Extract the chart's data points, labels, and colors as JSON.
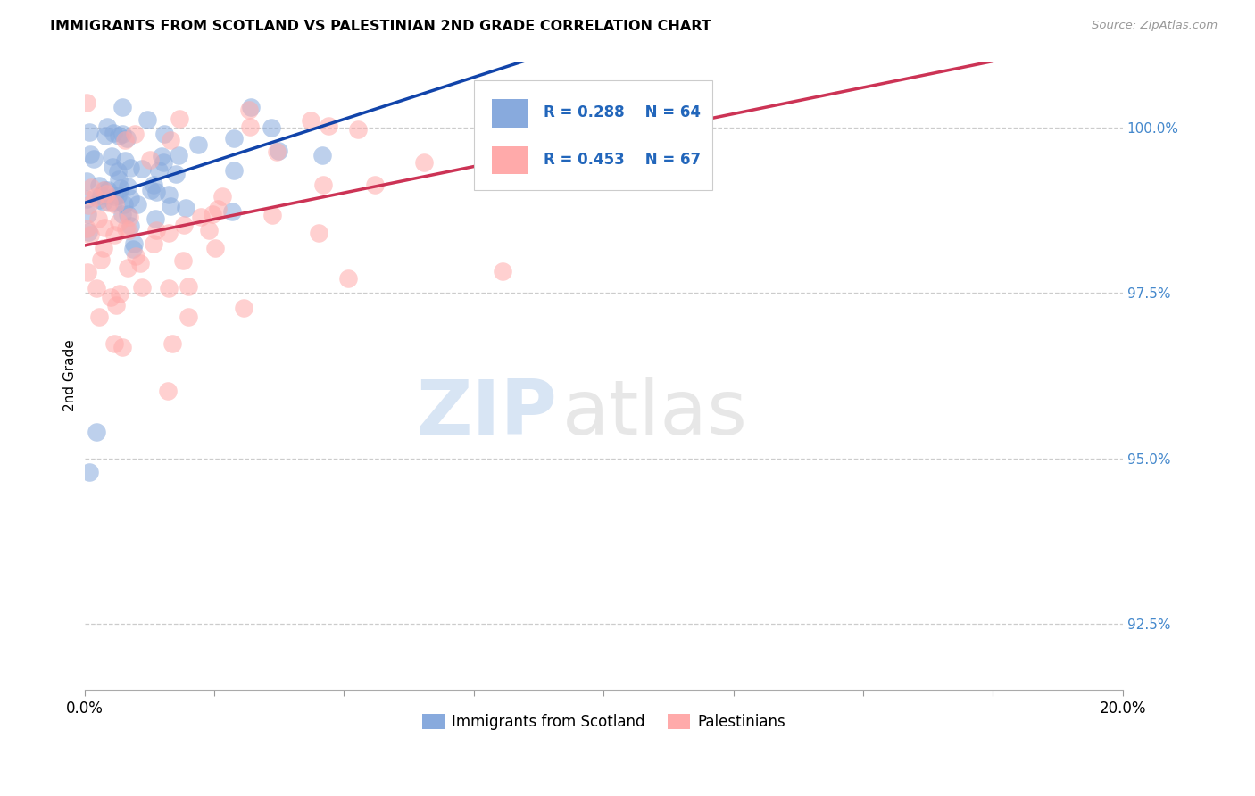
{
  "title": "IMMIGRANTS FROM SCOTLAND VS PALESTINIAN 2ND GRADE CORRELATION CHART",
  "source": "Source: ZipAtlas.com",
  "ylabel": "2nd Grade",
  "xmin": 0.0,
  "xmax": 20.0,
  "ymin": 91.5,
  "ymax": 101.0,
  "yticks": [
    92.5,
    95.0,
    97.5,
    100.0
  ],
  "ytick_labels": [
    "92.5%",
    "95.0%",
    "97.5%",
    "100.0%"
  ],
  "blue_R": 0.288,
  "blue_N": 64,
  "pink_R": 0.453,
  "pink_N": 67,
  "blue_color": "#88AADD",
  "pink_color": "#FFAAAA",
  "blue_line_color": "#1144AA",
  "pink_line_color": "#CC3355",
  "legend_label_blue": "Immigrants from Scotland",
  "legend_label_pink": "Palestinians",
  "watermark_zip": "ZIP",
  "watermark_atlas": "atlas"
}
